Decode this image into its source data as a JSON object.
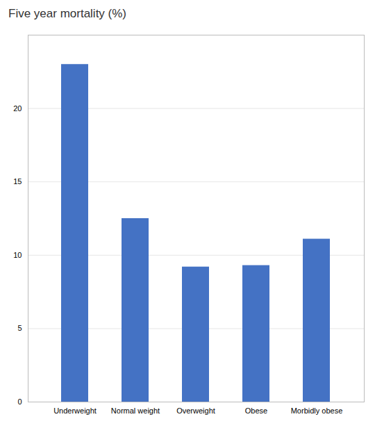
{
  "chart_data": {
    "type": "bar",
    "title": "Five year mortality (%)",
    "categories": [
      "Underweight",
      "Normal weight",
      "Overweight",
      "Obese",
      "Morbidly obese"
    ],
    "values": [
      23.0,
      12.5,
      9.2,
      9.3,
      11.1
    ],
    "color": "#4472C4",
    "ylim": [
      0,
      25
    ],
    "yticks": [
      0,
      5,
      10,
      15,
      20
    ],
    "grid": true
  }
}
